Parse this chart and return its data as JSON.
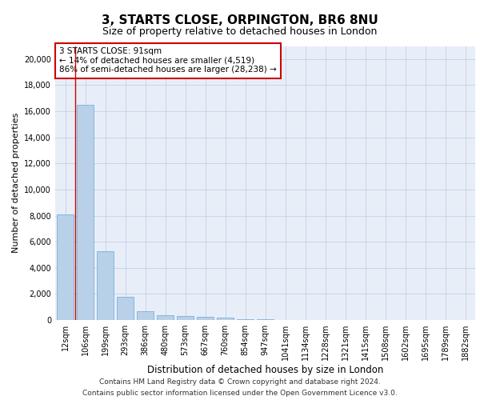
{
  "title1": "3, STARTS CLOSE, ORPINGTON, BR6 8NU",
  "title2": "Size of property relative to detached houses in London",
  "xlabel": "Distribution of detached houses by size in London",
  "ylabel": "Number of detached properties",
  "categories": [
    "12sqm",
    "106sqm",
    "199sqm",
    "293sqm",
    "386sqm",
    "480sqm",
    "573sqm",
    "667sqm",
    "760sqm",
    "854sqm",
    "947sqm",
    "1041sqm",
    "1134sqm",
    "1228sqm",
    "1321sqm",
    "1415sqm",
    "1508sqm",
    "1602sqm",
    "1695sqm",
    "1789sqm",
    "1882sqm"
  ],
  "values": [
    8100,
    16500,
    5300,
    1800,
    650,
    350,
    280,
    220,
    180,
    90,
    50,
    30,
    20,
    15,
    12,
    10,
    8,
    7,
    6,
    5,
    4
  ],
  "bar_color": "#b8d0e8",
  "bar_edge_color": "#6aaad4",
  "grid_color": "#c8d4e8",
  "background_color": "#e8eef8",
  "vline_x": 0.5,
  "vline_color": "#cc0000",
  "annotation_title": "3 STARTS CLOSE: 91sqm",
  "annotation_line1": "← 14% of detached houses are smaller (4,519)",
  "annotation_line2": "86% of semi-detached houses are larger (28,238) →",
  "annotation_box_color": "#ffffff",
  "annotation_box_edge": "#cc0000",
  "ylim": [
    0,
    21000
  ],
  "yticks": [
    0,
    2000,
    4000,
    6000,
    8000,
    10000,
    12000,
    14000,
    16000,
    18000,
    20000
  ],
  "footer1": "Contains HM Land Registry data © Crown copyright and database right 2024.",
  "footer2": "Contains public sector information licensed under the Open Government Licence v3.0.",
  "title1_fontsize": 11,
  "title2_fontsize": 9,
  "xlabel_fontsize": 8.5,
  "ylabel_fontsize": 8,
  "tick_fontsize": 7,
  "annotation_fontsize": 7.5,
  "footer_fontsize": 6.5
}
